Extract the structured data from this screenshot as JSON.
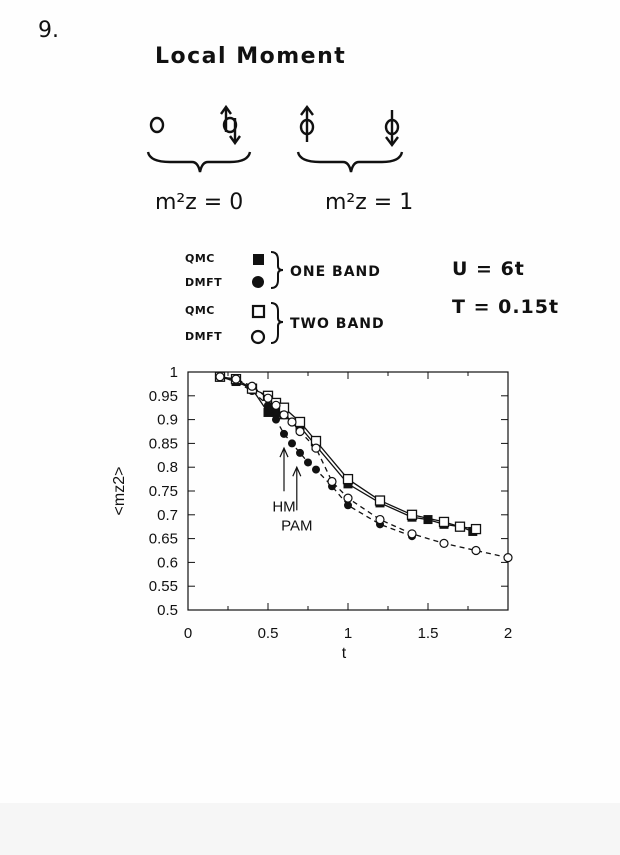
{
  "page": {
    "number": "9.",
    "title": "Local Moment"
  },
  "states": {
    "zero_symbol": "0",
    "mz2_zero": "m²z = 0",
    "mz2_one": "m²z = 1"
  },
  "legend": {
    "qmc": "QMC",
    "dmft": "DMFT",
    "one_band": "ONE BAND",
    "two_band": "TWO BAND"
  },
  "params": {
    "u": "U = 6t",
    "t": "T = 0.15t"
  },
  "chart_data": {
    "type": "line",
    "xlabel": "t",
    "ylabel": "<mz2>",
    "xlim": [
      0,
      2
    ],
    "ylim": [
      0.5,
      1
    ],
    "x_ticks": [
      "0",
      "0.5",
      "1",
      "1.5",
      "2"
    ],
    "y_ticks": [
      "0.5",
      "0.55",
      "0.6",
      "0.65",
      "0.7",
      "0.75",
      "0.8",
      "0.85",
      "0.9",
      "0.95",
      "1"
    ],
    "grid": false,
    "series": [
      {
        "name": "QMC ONE BAND",
        "marker": "filled-square",
        "line": "solid",
        "x": [
          0.2,
          0.3,
          0.4,
          0.5,
          0.55,
          0.6,
          0.7,
          0.8,
          1.0,
          1.2,
          1.4,
          1.5,
          1.6,
          1.7,
          1.78
        ],
        "y": [
          0.99,
          0.98,
          0.965,
          0.915,
          0.915,
          0.91,
          0.885,
          0.845,
          0.765,
          0.725,
          0.695,
          0.69,
          0.68,
          0.675,
          0.665
        ]
      },
      {
        "name": "DMFT ONE BAND",
        "marker": "filled-circle",
        "line": "dashed",
        "x": [
          0.2,
          0.3,
          0.4,
          0.5,
          0.55,
          0.6,
          0.65,
          0.7,
          0.75,
          0.8,
          0.9,
          1.0,
          1.2,
          1.4
        ],
        "y": [
          0.99,
          0.98,
          0.96,
          0.93,
          0.9,
          0.87,
          0.85,
          0.83,
          0.81,
          0.795,
          0.76,
          0.72,
          0.68,
          0.655
        ]
      },
      {
        "name": "QMC TWO BAND",
        "marker": "open-square",
        "line": "solid",
        "x": [
          0.2,
          0.3,
          0.4,
          0.5,
          0.55,
          0.6,
          0.7,
          0.8,
          1.0,
          1.2,
          1.4,
          1.6,
          1.7,
          1.8
        ],
        "y": [
          0.99,
          0.985,
          0.965,
          0.95,
          0.935,
          0.925,
          0.895,
          0.855,
          0.775,
          0.73,
          0.7,
          0.685,
          0.675,
          0.67
        ]
      },
      {
        "name": "DMFT TWO BAND",
        "marker": "open-circle",
        "line": "dashed",
        "x": [
          0.2,
          0.3,
          0.4,
          0.5,
          0.55,
          0.6,
          0.65,
          0.7,
          0.8,
          0.9,
          1.0,
          1.2,
          1.4,
          1.6,
          1.8,
          2.0
        ],
        "y": [
          0.99,
          0.985,
          0.97,
          0.945,
          0.93,
          0.91,
          0.895,
          0.875,
          0.84,
          0.77,
          0.735,
          0.69,
          0.66,
          0.64,
          0.625,
          0.61
        ]
      }
    ],
    "annotations": [
      {
        "text": "HM",
        "x": 0.6,
        "y": 0.72,
        "arrow_to_y": 0.84
      },
      {
        "text": "PAM",
        "x": 0.68,
        "y": 0.68,
        "arrow_to_y": 0.8
      }
    ]
  }
}
